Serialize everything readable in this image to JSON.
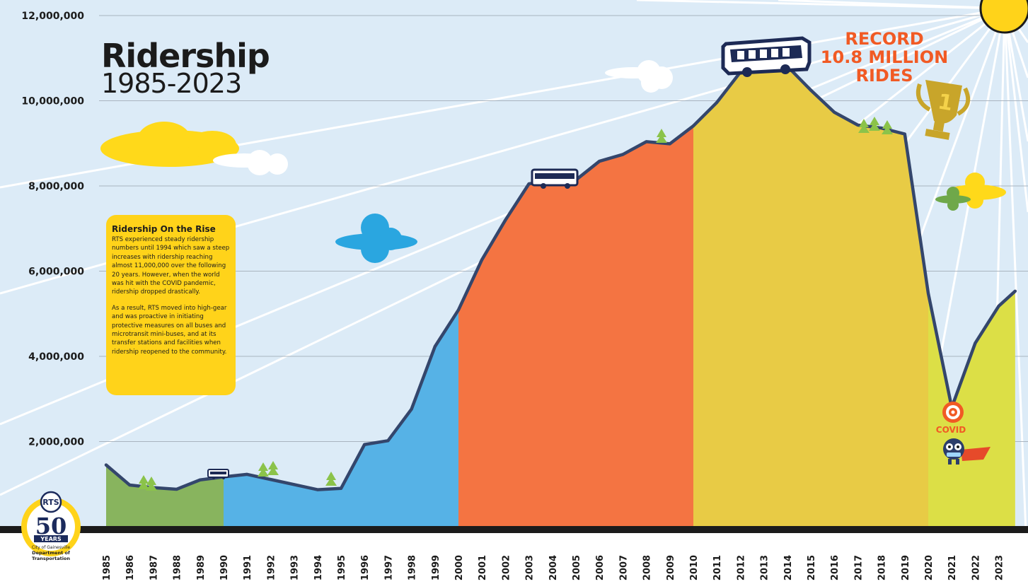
{
  "header": {
    "title": "Ridership",
    "subtitle": "1985-2023"
  },
  "info_box": {
    "heading": "Ridership On the Rise",
    "paragraph1": "RTS experienced steady ridership numbers until 1994 which saw a steep increases with ridership reaching almost 11,000,000 over the following 20 years. However, when the world was hit with the COVID pandemic, ridership dropped drastically.",
    "paragraph2": "As a result, RTS moved into high-gear and was proactive in initiating protective measures on all buses and microtransit mini-buses, and at its transfer stations and facilities when ridership reopened to the community."
  },
  "annotations": {
    "record_line1": "RECORD",
    "record_line2": "10.8 MILLION",
    "record_line3": "RIDES",
    "covid": "COVID"
  },
  "logo": {
    "badge_text": "RTS",
    "number": "50",
    "years": "YEARS",
    "org_line1": "City of Gainesville",
    "org_line2": "Department of",
    "org_line3": "Transportation"
  },
  "chart_data": {
    "type": "area",
    "title": "Ridership",
    "subtitle": "1985-2023",
    "xlabel": "",
    "ylabel": "",
    "ylim": [
      0,
      12000000
    ],
    "y_ticks": [
      "2,000,000",
      "4,000,000",
      "6,000,000",
      "8,000,000",
      "10,000,000",
      "12,000,000"
    ],
    "y_tick_values": [
      2000000,
      4000000,
      6000000,
      8000000,
      10000000,
      12000000
    ],
    "grid": true,
    "x": [
      1985,
      1986,
      1987,
      1988,
      1989,
      1990,
      1991,
      1992,
      1993,
      1994,
      1995,
      1996,
      1997,
      1998,
      1999,
      2000,
      2001,
      2002,
      2003,
      2004,
      2005,
      2006,
      2007,
      2008,
      2009,
      2010,
      2011,
      2012,
      2013,
      2014,
      2015,
      2016,
      2017,
      2018,
      2019,
      2020,
      2021,
      2022,
      2023
    ],
    "x_labels": [
      "1985",
      "1986",
      "1987",
      "1988",
      "1989",
      "1990",
      "1991",
      "1992",
      "1993",
      "1994",
      "1995",
      "1996",
      "1997",
      "1998",
      "1999",
      "2000",
      "2001",
      "2002",
      "2003",
      "2004",
      "2005",
      "2006",
      "2007",
      "2008",
      "2009",
      "2010",
      "2011",
      "2012",
      "2013",
      "2014",
      "2015",
      "2016",
      "2017",
      "2018",
      "2019",
      "2020",
      "2021",
      "2022",
      "2023"
    ],
    "values": [
      1450000,
      980000,
      920000,
      880000,
      1100000,
      1170000,
      1230000,
      1110000,
      990000,
      870000,
      900000,
      1930000,
      2020000,
      2760000,
      4230000,
      5090000,
      6270000,
      7200000,
      8050000,
      8120000,
      8140000,
      8580000,
      8740000,
      9040000,
      8990000,
      9410000,
      9960000,
      10670000,
      10830000,
      10810000,
      10250000,
      9730000,
      9430000,
      9360000,
      9220000,
      5480000,
      2800000,
      4310000,
      5180000
    ],
    "last_value": 5530000,
    "segments": [
      {
        "from": 1985,
        "to": 1990,
        "color": "#88b45e"
      },
      {
        "from": 1990,
        "to": 2000,
        "color": "#56b2e6"
      },
      {
        "from": 2000,
        "to": 2010,
        "color": "#f47442"
      },
      {
        "from": 2010,
        "to": 2020,
        "color": "#e8cb45"
      },
      {
        "from": 2020,
        "to": 2023.7,
        "color": "#dcdf46"
      }
    ],
    "line_color": "#34466c"
  }
}
